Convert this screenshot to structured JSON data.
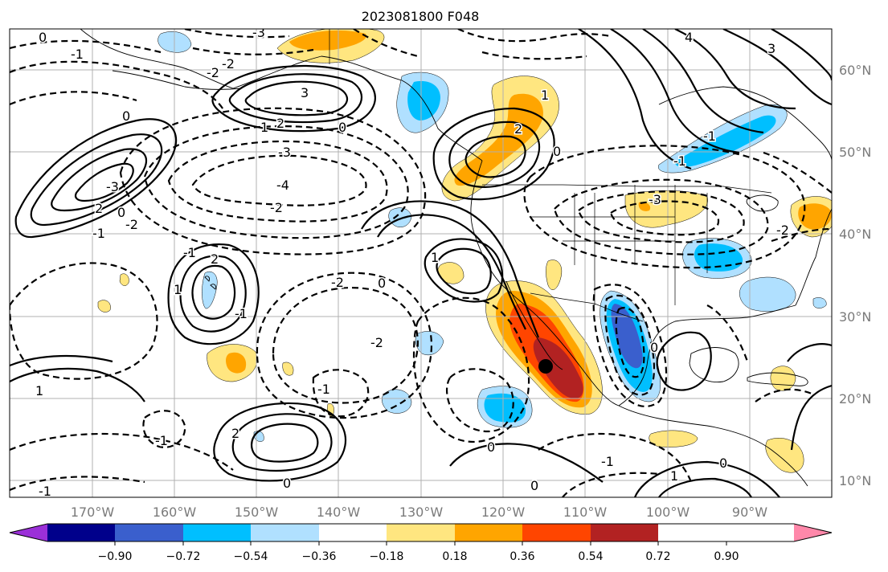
{
  "title": "2023081800 F048",
  "lat_labels": [
    "60°N",
    "50°N",
    "40°N",
    "30°N",
    "20°N",
    "10°N"
  ],
  "lon_labels": [
    "170°W",
    "160°W",
    "150°W",
    "140°W",
    "130°W",
    "120°W",
    "110°W",
    "100°W",
    "90°W"
  ],
  "colorbar": {
    "colors": [
      "#9b30d8",
      "#00008b",
      "#3a5fcd",
      "#00bfff",
      "#b0e0ff",
      "#ffffff",
      "#ffe680",
      "#ffa500",
      "#ff4500",
      "#b22222",
      "#ff88aa"
    ],
    "tick_labels": [
      "−0.90",
      "−0.72",
      "−0.54",
      "−0.36",
      "−0.18",
      "0.18",
      "0.36",
      "0.54",
      "0.72",
      "0.90"
    ]
  },
  "contour_labels": [
    "0",
    "-1",
    "-3",
    "-2",
    "4",
    "3",
    "3",
    "-2",
    "0",
    "2",
    "1",
    "-3",
    "0",
    "-4",
    "-2",
    "-3",
    "2",
    "0",
    "-1",
    "-2",
    "2",
    "-1",
    "1",
    "-1",
    "1",
    "-2",
    "0",
    "-1",
    "-1",
    "-1",
    "2",
    "0",
    "0",
    "0",
    "-1",
    "1",
    "0",
    "1",
    "-3",
    "0",
    "-2",
    "0",
    "2",
    "1",
    "-2",
    "-1",
    "-1"
  ],
  "marker": {
    "name": "storm center"
  }
}
